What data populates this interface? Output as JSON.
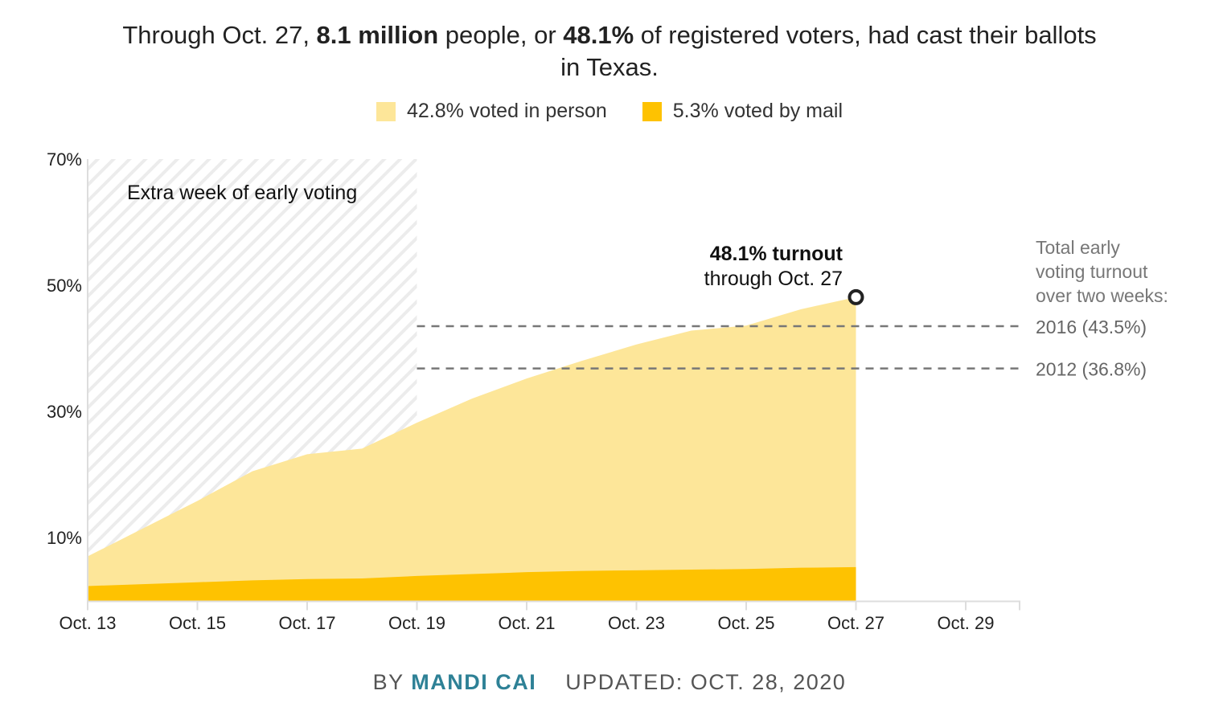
{
  "title": {
    "parts": [
      "Through Oct. 27, ",
      "8.1 million",
      " people, or ",
      "48.1%",
      " of registered voters, had cast their ballots"
    ],
    "line2": "in Texas."
  },
  "legend": [
    {
      "label": "42.8% voted in person",
      "color": "#fde699"
    },
    {
      "label": "5.3% voted by mail",
      "color": "#fec201"
    }
  ],
  "chart_data": {
    "type": "area",
    "stacked": true,
    "x": [
      "Oct. 13",
      "Oct. 14",
      "Oct. 15",
      "Oct. 16",
      "Oct. 17",
      "Oct. 18",
      "Oct. 19",
      "Oct. 20",
      "Oct. 21",
      "Oct. 22",
      "Oct. 23",
      "Oct. 24",
      "Oct. 25",
      "Oct. 26",
      "Oct. 27"
    ],
    "series": [
      {
        "name": "Total turnout (in person + mail)",
        "values": [
          7.0,
          11.4,
          15.8,
          20.5,
          23.2,
          24.1,
          28.2,
          32.0,
          35.2,
          38.0,
          40.6,
          42.8,
          43.6,
          46.2,
          48.1
        ]
      },
      {
        "name": "Voted by mail",
        "values": [
          2.3,
          2.6,
          2.9,
          3.2,
          3.4,
          3.5,
          3.9,
          4.2,
          4.5,
          4.7,
          4.8,
          4.9,
          5.0,
          5.2,
          5.3
        ]
      }
    ],
    "xticks": [
      "Oct. 13",
      "Oct. 15",
      "Oct. 17",
      "Oct. 19",
      "Oct. 21",
      "Oct. 23",
      "Oct. 25",
      "Oct. 27",
      "Oct. 29"
    ],
    "xrange_days": [
      13,
      30
    ],
    "ylim": [
      0,
      70
    ],
    "yticks": [
      {
        "v": 70,
        "label": "70%"
      },
      {
        "v": 50,
        "label": "50%"
      },
      {
        "v": 30,
        "label": "30%"
      },
      {
        "v": 10,
        "label": "10%"
      }
    ],
    "shaded_region": {
      "from_day": 13,
      "to_day": 19,
      "label": "Extra week of early voting"
    },
    "reference_lines": [
      {
        "value": 43.5,
        "label": "2016 (43.5%)",
        "from_day": 19
      },
      {
        "value": 36.8,
        "label": "2012 (36.8%)",
        "from_day": 19
      }
    ],
    "reference_heading": [
      "Total early",
      "voting turnout",
      "over two weeks:"
    ],
    "annotation": {
      "bold": "48.1% turnout",
      "text": "through Oct. 27",
      "value": 48.1,
      "day": 27
    },
    "colors": {
      "in_person": "#fde699",
      "mail": "#fec201",
      "hatch": "#ececec",
      "ref": "#777777"
    }
  },
  "footer": {
    "by": "BY ",
    "author": "MANDI CAI",
    "updated": "UPDATED: OCT. 28, 2020"
  }
}
